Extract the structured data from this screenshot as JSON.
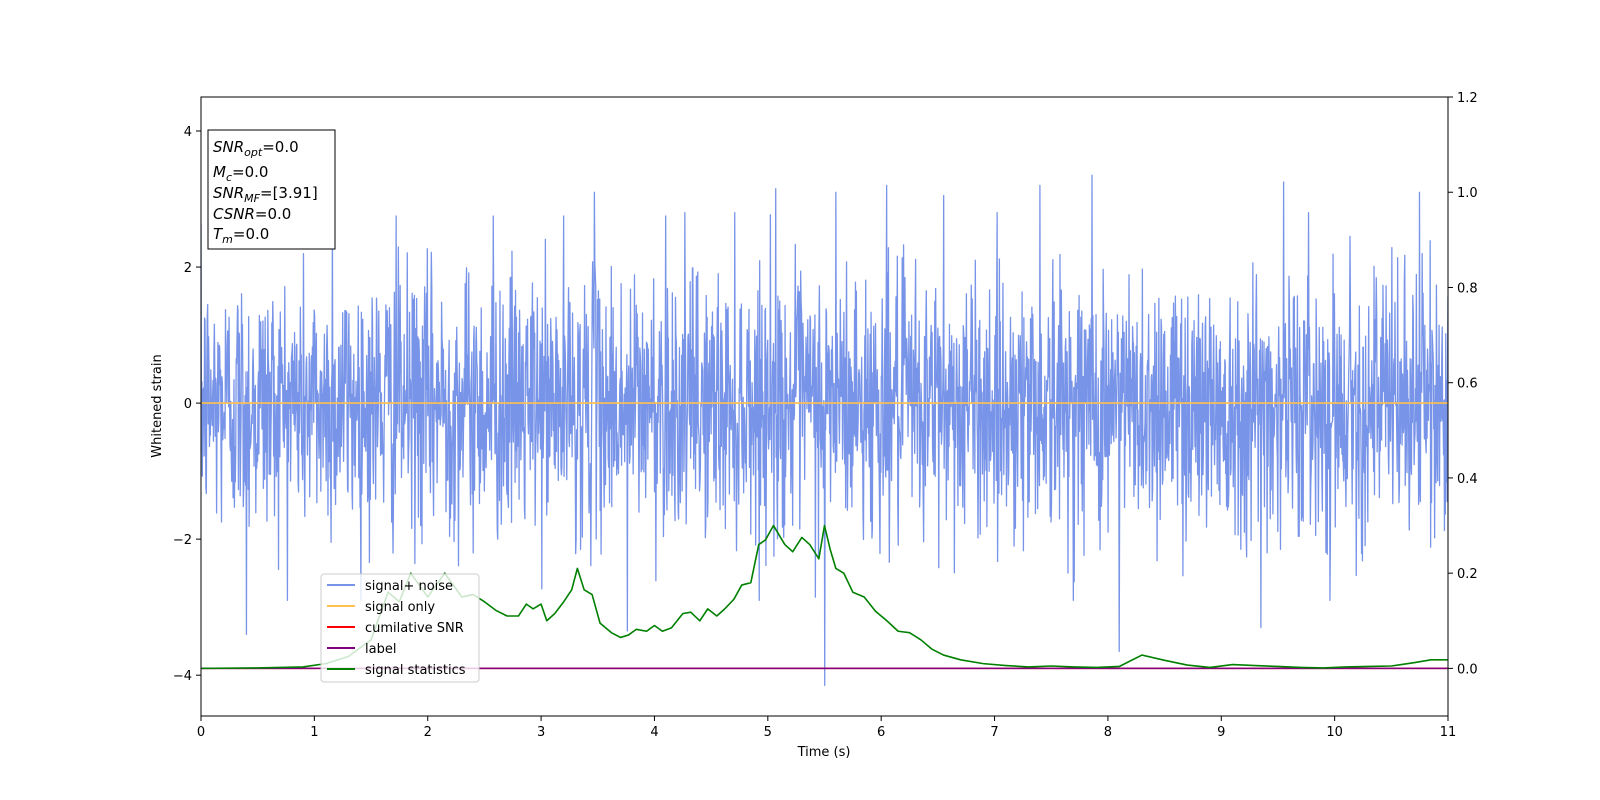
{
  "chart_data": {
    "type": "line",
    "title": "",
    "xlabel": "Time (s)",
    "ylabel": "Whitened strain",
    "xlim": [
      0,
      11
    ],
    "ylim_left": [
      -4.6,
      4.5
    ],
    "ylim_right": [
      -0.1,
      1.2
    ],
    "x_ticks": [
      "0",
      "1",
      "2",
      "3",
      "4",
      "5",
      "6",
      "7",
      "8",
      "9",
      "10",
      "11"
    ],
    "y_left_ticks": [
      "−4",
      "−2",
      "0",
      "2",
      "4"
    ],
    "y_left_tick_values": [
      -4,
      -2,
      0,
      2,
      4
    ],
    "y_right_ticks": [
      "0.0",
      "0.2",
      "0.4",
      "0.6",
      "0.8",
      "1.0",
      "1.2"
    ],
    "y_right_tick_values": [
      0.0,
      0.2,
      0.4,
      0.6,
      0.8,
      1.0,
      1.2
    ],
    "grid": false,
    "legend_position": "lower-left",
    "annotation": {
      "lines": [
        {
          "base": "SNR",
          "sub": "opt",
          "value": "=0.0"
        },
        {
          "base": "M",
          "sub": "c",
          "value": "=0.0"
        },
        {
          "base": "SNR",
          "sub": "MF",
          "value": "=[3.91]"
        },
        {
          "base": "CSNR",
          "sub": "",
          "value": "=0.0"
        },
        {
          "base": "T",
          "sub": "m",
          "value": "=0.0"
        }
      ]
    },
    "series": [
      {
        "name": "signal+ noise",
        "color": "#7894e8",
        "axis": "left",
        "kind": "noise",
        "noise_sigma": 0.95,
        "sample_count": 2800,
        "peaks": [
          {
            "x": 0.4,
            "y": -3.4
          },
          {
            "x": 1.16,
            "y": 2.7
          },
          {
            "x": 1.72,
            "y": 2.75
          },
          {
            "x": 2.58,
            "y": 2.75
          },
          {
            "x": 3.2,
            "y": 2.75
          },
          {
            "x": 3.47,
            "y": 3.1
          },
          {
            "x": 3.76,
            "y": -3.35
          },
          {
            "x": 4.1,
            "y": 2.75
          },
          {
            "x": 5.07,
            "y": 3.15
          },
          {
            "x": 5.5,
            "y": -4.15
          },
          {
            "x": 5.6,
            "y": 3.1
          },
          {
            "x": 6.05,
            "y": 3.2
          },
          {
            "x": 6.55,
            "y": 3.05
          },
          {
            "x": 7.4,
            "y": 3.2
          },
          {
            "x": 7.86,
            "y": 3.35
          },
          {
            "x": 8.1,
            "y": -3.65
          },
          {
            "x": 9.35,
            "y": -3.3
          },
          {
            "x": 9.55,
            "y": 3.25
          },
          {
            "x": 10.75,
            "y": 3.1
          }
        ]
      },
      {
        "name": "signal only",
        "color": "#ffc04d",
        "axis": "left",
        "x": [
          0,
          11
        ],
        "y": [
          0,
          0
        ]
      },
      {
        "name": "cumilative SNR",
        "color": "#ff0000",
        "axis": "right",
        "x": [
          0,
          11
        ],
        "y": [
          0,
          0
        ]
      },
      {
        "name": "label",
        "color": "#800080",
        "axis": "right",
        "x": [
          0,
          11
        ],
        "y": [
          0,
          0
        ]
      },
      {
        "name": "signal statistics",
        "color": "#008000",
        "axis": "right",
        "x": [
          0,
          0.5,
          0.9,
          1.1,
          1.3,
          1.5,
          1.65,
          1.75,
          1.85,
          2.0,
          2.15,
          2.3,
          2.4,
          2.5,
          2.6,
          2.7,
          2.8,
          2.87,
          2.93,
          3.0,
          3.05,
          3.12,
          3.2,
          3.27,
          3.32,
          3.38,
          3.45,
          3.52,
          3.62,
          3.7,
          3.77,
          3.84,
          3.93,
          4.0,
          4.07,
          4.15,
          4.25,
          4.32,
          4.4,
          4.47,
          4.55,
          4.62,
          4.7,
          4.77,
          4.85,
          4.92,
          4.98,
          5.05,
          5.15,
          5.22,
          5.3,
          5.37,
          5.45,
          5.5,
          5.55,
          5.6,
          5.67,
          5.75,
          5.85,
          5.95,
          6.05,
          6.15,
          6.25,
          6.35,
          6.45,
          6.55,
          6.7,
          6.9,
          7.1,
          7.3,
          7.5,
          7.7,
          7.9,
          8.1,
          8.3,
          8.5,
          8.7,
          8.9,
          9.1,
          9.3,
          9.5,
          9.7,
          9.9,
          10.1,
          10.3,
          10.5,
          10.7,
          10.85,
          11.0
        ],
        "y": [
          0.0,
          0.001,
          0.003,
          0.01,
          0.025,
          0.06,
          0.16,
          0.14,
          0.2,
          0.15,
          0.2,
          0.15,
          0.155,
          0.14,
          0.122,
          0.11,
          0.11,
          0.135,
          0.125,
          0.135,
          0.1,
          0.115,
          0.14,
          0.165,
          0.21,
          0.165,
          0.155,
          0.095,
          0.075,
          0.065,
          0.07,
          0.082,
          0.078,
          0.09,
          0.078,
          0.085,
          0.115,
          0.118,
          0.1,
          0.125,
          0.11,
          0.125,
          0.145,
          0.175,
          0.18,
          0.26,
          0.27,
          0.3,
          0.26,
          0.245,
          0.275,
          0.26,
          0.23,
          0.3,
          0.25,
          0.21,
          0.2,
          0.16,
          0.15,
          0.12,
          0.1,
          0.078,
          0.075,
          0.06,
          0.04,
          0.028,
          0.018,
          0.01,
          0.006,
          0.003,
          0.005,
          0.003,
          0.002,
          0.004,
          0.028,
          0.017,
          0.007,
          0.002,
          0.008,
          0.006,
          0.004,
          0.002,
          0.001,
          0.003,
          0.004,
          0.005,
          0.012,
          0.018,
          0.018
        ]
      }
    ]
  }
}
